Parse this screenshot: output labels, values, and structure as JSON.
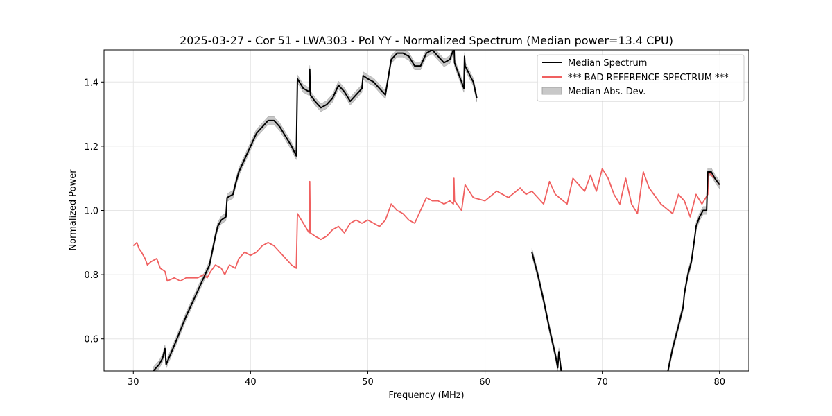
{
  "chart_data": {
    "type": "line",
    "title": "2025-03-27 - Cor 51 - LWA303 - Pol YY - Normalized Spectrum (Median power=13.4 CPU)",
    "xlabel": "Frequency (MHz)",
    "ylabel": "Normalized Power",
    "xlim": [
      27.5,
      82.5
    ],
    "ylim": [
      0.5,
      1.5
    ],
    "xticks": [
      30,
      40,
      50,
      60,
      70,
      80
    ],
    "yticks": [
      0.6,
      0.8,
      1.0,
      1.2,
      1.4
    ],
    "xtick_labels": [
      "30",
      "40",
      "50",
      "60",
      "70",
      "80"
    ],
    "ytick_labels": [
      "0.6",
      "0.8",
      "1.0",
      "1.2",
      "1.4"
    ],
    "grid": true,
    "legend_position": "top-right",
    "band": {
      "name": "Median Abs. Dev.",
      "color": "#c8c8c8",
      "half_width": 0.012
    },
    "series": [
      {
        "name": "Median Spectrum",
        "color": "#000000",
        "segments": [
          {
            "x": [
              31.7,
              32.2,
              32.5,
              32.7,
              32.8,
              33.5,
              34.5,
              35.5,
              36.5,
              37.0,
              37.2,
              37.5,
              37.9,
              38.0,
              38.5,
              38.7,
              39.0,
              39.5,
              40.0,
              40.5,
              41.0,
              41.5,
              42.0,
              42.5,
              43.0,
              43.5,
              43.9,
              44.0,
              44.5,
              45.0,
              45.05,
              45.1,
              45.5,
              46.0,
              46.5,
              47.0,
              47.5,
              48.0,
              48.5,
              49.0,
              49.5,
              49.6,
              50.0,
              50.5,
              51.0,
              51.5,
              52.0,
              52.5,
              53.0,
              53.5,
              54.0,
              54.5,
              55.0,
              55.5,
              56.0,
              56.5,
              57.0,
              57.3,
              57.35,
              57.4,
              57.8,
              58.2,
              58.25,
              58.3,
              59.0,
              59.3
            ],
            "y": [
              0.5,
              0.52,
              0.54,
              0.57,
              0.52,
              0.58,
              0.67,
              0.75,
              0.83,
              0.92,
              0.95,
              0.97,
              0.98,
              1.04,
              1.05,
              1.08,
              1.12,
              1.16,
              1.2,
              1.24,
              1.26,
              1.28,
              1.28,
              1.26,
              1.23,
              1.2,
              1.17,
              1.41,
              1.38,
              1.37,
              1.44,
              1.36,
              1.34,
              1.32,
              1.33,
              1.35,
              1.39,
              1.37,
              1.34,
              1.36,
              1.38,
              1.42,
              1.41,
              1.4,
              1.38,
              1.36,
              1.47,
              1.49,
              1.49,
              1.48,
              1.45,
              1.45,
              1.49,
              1.5,
              1.48,
              1.46,
              1.47,
              1.5,
              1.52,
              1.46,
              1.42,
              1.38,
              1.48,
              1.45,
              1.4,
              1.35
            ]
          },
          {
            "x": [
              64.0,
              64.5,
              65.0,
              65.5,
              66.0,
              66.2,
              66.3,
              66.5
            ],
            "y": [
              0.87,
              0.8,
              0.72,
              0.63,
              0.55,
              0.51,
              0.56,
              0.5
            ]
          },
          {
            "x": [
              75.6,
              76.0,
              76.5,
              76.9,
              77.0,
              77.3,
              77.6,
              77.9,
              78.0,
              78.3,
              78.6,
              78.9,
              79.0,
              79.05,
              79.3,
              79.6,
              80.0
            ],
            "y": [
              0.5,
              0.57,
              0.64,
              0.7,
              0.74,
              0.8,
              0.84,
              0.92,
              0.95,
              0.98,
              1.0,
              1.0,
              1.12,
              1.12,
              1.12,
              1.1,
              1.08
            ]
          }
        ]
      },
      {
        "name": "*** BAD REFERENCE SPECTRUM ***",
        "color": "#f06060",
        "segments": [
          {
            "x": [
              30.0,
              30.3,
              30.5,
              30.7,
              31.0,
              31.2,
              31.5,
              32.0,
              32.3,
              32.7,
              32.9,
              33.5,
              34.0,
              34.5,
              35.0,
              35.5,
              36.0,
              36.3,
              36.6,
              37.0,
              37.5,
              37.8,
              38.2,
              38.7,
              39.0,
              39.5,
              40.0,
              40.5,
              41.0,
              41.5,
              42.0,
              42.5,
              43.0,
              43.5,
              43.9,
              44.0,
              44.5,
              45.0,
              45.05,
              45.1,
              45.5,
              46.0,
              46.5,
              47.0,
              47.5,
              48.0,
              48.5,
              49.0,
              49.5,
              50.0,
              50.5,
              51.0,
              51.5,
              52.0,
              52.5,
              53.0,
              53.5,
              54.0,
              54.5,
              55.0,
              55.5,
              56.0,
              56.5,
              57.0,
              57.3,
              57.35,
              57.4,
              58.0,
              58.3,
              59.0,
              60.0,
              61.0,
              61.5,
              62.0,
              63.0,
              63.5,
              64.0,
              65.0,
              65.5,
              66.0,
              67.0,
              67.5,
              68.0,
              68.5,
              69.0,
              69.5,
              70.0,
              70.5,
              71.0,
              71.5,
              72.0,
              72.5,
              73.0,
              73.5,
              74.0,
              75.0,
              76.0,
              76.5,
              77.0,
              77.5,
              78.0,
              78.5,
              79.0,
              79.05,
              79.3,
              79.6,
              80.0
            ],
            "y": [
              0.89,
              0.9,
              0.88,
              0.87,
              0.85,
              0.83,
              0.84,
              0.85,
              0.82,
              0.81,
              0.78,
              0.79,
              0.78,
              0.79,
              0.79,
              0.79,
              0.8,
              0.79,
              0.81,
              0.83,
              0.82,
              0.8,
              0.83,
              0.82,
              0.85,
              0.87,
              0.86,
              0.87,
              0.89,
              0.9,
              0.89,
              0.87,
              0.85,
              0.83,
              0.82,
              0.99,
              0.96,
              0.93,
              1.09,
              0.93,
              0.92,
              0.91,
              0.92,
              0.94,
              0.95,
              0.93,
              0.96,
              0.97,
              0.96,
              0.97,
              0.96,
              0.95,
              0.97,
              1.02,
              1.0,
              0.99,
              0.97,
              0.96,
              1.0,
              1.04,
              1.03,
              1.03,
              1.02,
              1.03,
              1.02,
              1.1,
              1.03,
              1.0,
              1.08,
              1.04,
              1.03,
              1.06,
              1.05,
              1.04,
              1.07,
              1.05,
              1.06,
              1.02,
              1.09,
              1.05,
              1.02,
              1.1,
              1.08,
              1.06,
              1.11,
              1.06,
              1.13,
              1.1,
              1.05,
              1.02,
              1.1,
              1.02,
              0.99,
              1.12,
              1.07,
              1.02,
              0.99,
              1.05,
              1.03,
              0.98,
              1.05,
              1.02,
              1.05,
              1.12,
              1.11,
              1.1,
              1.08
            ]
          }
        ]
      }
    ]
  }
}
